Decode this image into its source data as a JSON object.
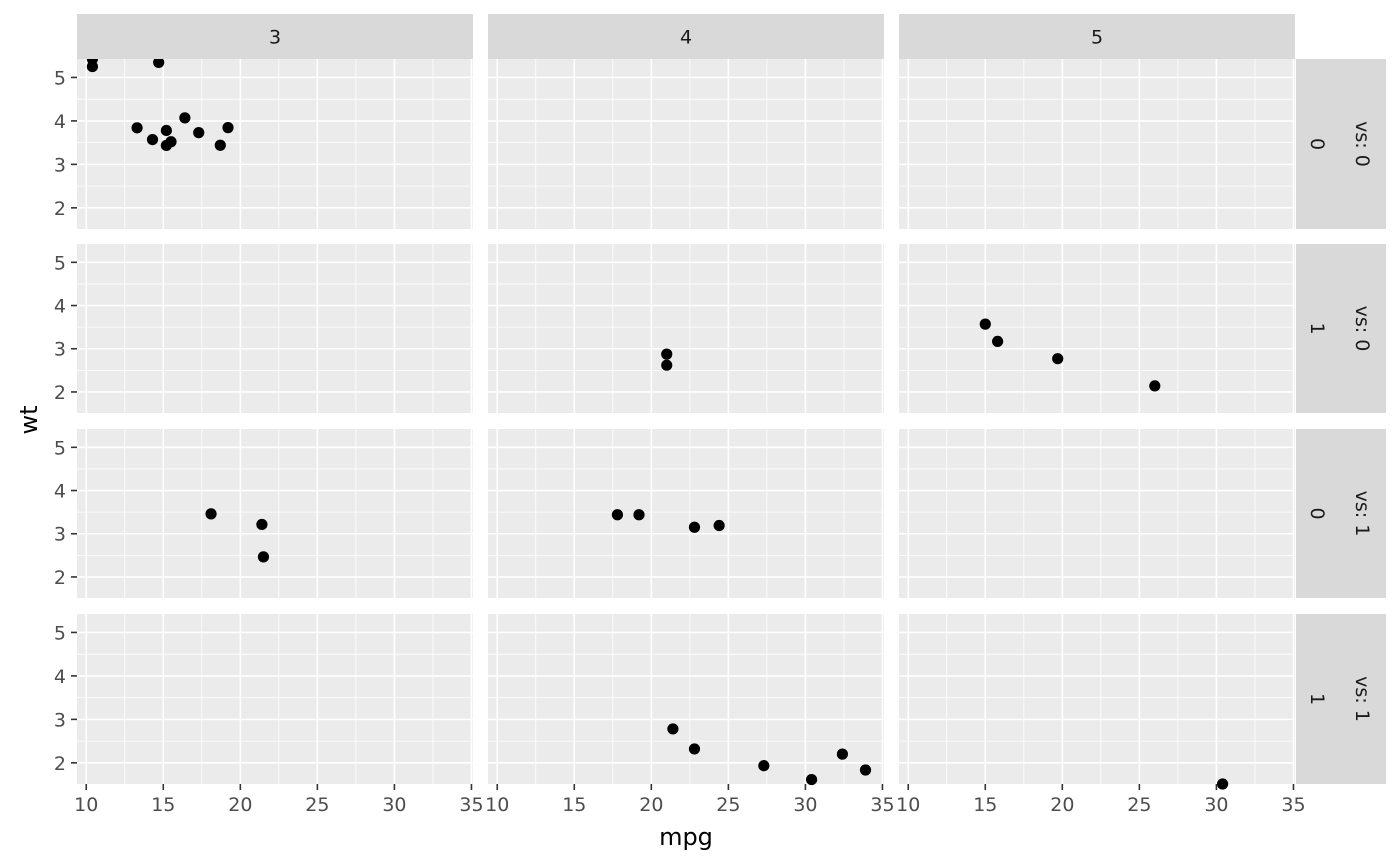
{
  "chart_data": {
    "type": "scatter",
    "xlabel": "mpg",
    "ylabel": "wt",
    "xlim": [
      9.4,
      35.1
    ],
    "ylim": [
      1.513,
      5.424
    ],
    "x_ticks": [
      10,
      15,
      20,
      25,
      30,
      35
    ],
    "y_ticks": [
      2,
      3,
      4,
      5
    ],
    "grid": true,
    "colors": {
      "panel_bg": "#EBEBEB",
      "strip_bg": "#D9D9D9",
      "grid": "#FFFFFF",
      "point": "#000000",
      "text": "#4D4D4D"
    },
    "col_facet": {
      "labels": [
        "3",
        "4",
        "5"
      ]
    },
    "row_facets": [
      {
        "inner": "0",
        "outer": "vs: 0"
      },
      {
        "inner": "1",
        "outer": "vs: 0"
      },
      {
        "inner": "0",
        "outer": "vs: 1"
      },
      {
        "inner": "1",
        "outer": "vs: 1"
      }
    ],
    "panels": [
      {
        "row": 0,
        "col": 0,
        "points": [
          [
            10.4,
            5.424
          ],
          [
            10.4,
            5.25
          ],
          [
            14.7,
            5.345
          ],
          [
            13.3,
            3.84
          ],
          [
            14.3,
            3.57
          ],
          [
            15.2,
            3.78
          ],
          [
            15.2,
            3.435
          ],
          [
            15.5,
            3.52
          ],
          [
            16.4,
            4.07
          ],
          [
            17.3,
            3.73
          ],
          [
            18.7,
            3.44
          ],
          [
            19.2,
            3.845
          ]
        ]
      },
      {
        "row": 0,
        "col": 1,
        "points": []
      },
      {
        "row": 0,
        "col": 2,
        "points": []
      },
      {
        "row": 1,
        "col": 0,
        "points": []
      },
      {
        "row": 1,
        "col": 1,
        "points": [
          [
            21.0,
            2.875
          ],
          [
            21.0,
            2.62
          ]
        ]
      },
      {
        "row": 1,
        "col": 2,
        "points": [
          [
            15.0,
            3.57
          ],
          [
            15.8,
            3.17
          ],
          [
            19.7,
            2.77
          ],
          [
            26.0,
            2.14
          ]
        ]
      },
      {
        "row": 2,
        "col": 0,
        "points": [
          [
            18.1,
            3.46
          ],
          [
            21.4,
            3.215
          ],
          [
            21.5,
            2.465
          ]
        ]
      },
      {
        "row": 2,
        "col": 1,
        "points": [
          [
            17.8,
            3.44
          ],
          [
            19.2,
            3.44
          ],
          [
            22.8,
            3.15
          ],
          [
            24.4,
            3.19
          ]
        ]
      },
      {
        "row": 2,
        "col": 2,
        "points": []
      },
      {
        "row": 3,
        "col": 0,
        "points": []
      },
      {
        "row": 3,
        "col": 1,
        "points": [
          [
            21.4,
            2.78
          ],
          [
            22.8,
            2.32
          ],
          [
            27.3,
            1.935
          ],
          [
            30.4,
            1.615
          ],
          [
            32.4,
            2.2
          ],
          [
            33.9,
            1.835
          ]
        ]
      },
      {
        "row": 3,
        "col": 2,
        "points": [
          [
            30.4,
            1.513
          ]
        ]
      }
    ]
  }
}
